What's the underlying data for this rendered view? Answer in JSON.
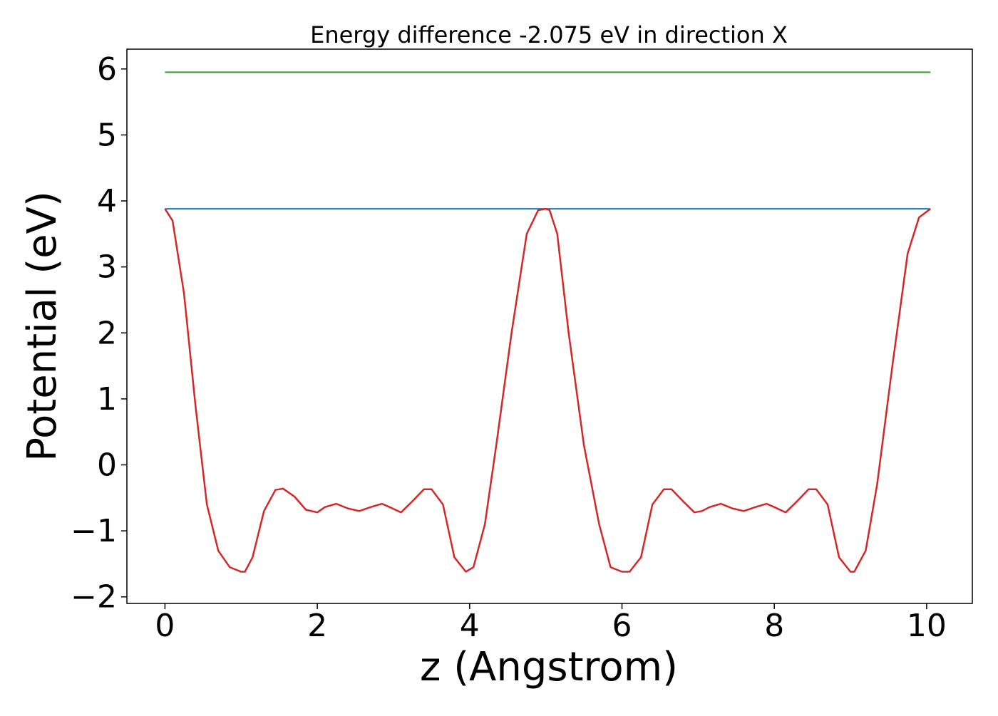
{
  "chart_data": {
    "type": "line",
    "title": "Energy difference -2.075 eV in direction X",
    "xlabel": "z (Angstrom)",
    "ylabel": "Potential (eV)",
    "xlim": [
      -0.5,
      10.6
    ],
    "ylim": [
      -2.1,
      6.3
    ],
    "x_ticks": [
      0,
      2,
      4,
      6,
      8,
      10
    ],
    "x_tick_labels": [
      "0",
      "2",
      "4",
      "6",
      "8",
      "10"
    ],
    "y_ticks": [
      -2,
      -1,
      0,
      1,
      2,
      3,
      4,
      5,
      6
    ],
    "y_tick_labels": [
      "−2",
      "−1",
      "0",
      "1",
      "2",
      "3",
      "4",
      "5",
      "6"
    ],
    "grid": false,
    "legend": false,
    "series": [
      {
        "color": "#d62728",
        "x": [
          0,
          0.1,
          0.25,
          0.4,
          0.55,
          0.7,
          0.85,
          1.0,
          1.05,
          1.15,
          1.3,
          1.45,
          1.55,
          1.7,
          1.85,
          2.0,
          2.1,
          2.25,
          2.4,
          2.55,
          2.7,
          2.85,
          2.95,
          3.1,
          3.25,
          3.4,
          3.5,
          3.65,
          3.8,
          3.95,
          4.05,
          4.2,
          4.35,
          4.55,
          4.75,
          4.9,
          5.0,
          5.05,
          5.15,
          5.3,
          5.5,
          5.7,
          5.85,
          6.0,
          6.1,
          6.25,
          6.4,
          6.55,
          6.65,
          6.8,
          6.95,
          7.05,
          7.15,
          7.3,
          7.45,
          7.6,
          7.75,
          7.9,
          8.0,
          8.15,
          8.3,
          8.45,
          8.55,
          8.7,
          8.85,
          9.0,
          9.05,
          9.2,
          9.35,
          9.55,
          9.75,
          9.9,
          10.05
        ],
        "y": [
          3.88,
          3.7,
          2.6,
          0.9,
          -0.6,
          -1.3,
          -1.55,
          -1.62,
          -1.62,
          -1.4,
          -0.7,
          -0.38,
          -0.36,
          -0.48,
          -0.68,
          -0.72,
          -0.64,
          -0.59,
          -0.66,
          -0.7,
          -0.64,
          -0.59,
          -0.64,
          -0.72,
          -0.55,
          -0.37,
          -0.37,
          -0.6,
          -1.4,
          -1.62,
          -1.55,
          -0.9,
          0.3,
          2.0,
          3.5,
          3.86,
          3.88,
          3.86,
          3.5,
          2.0,
          0.3,
          -0.9,
          -1.55,
          -1.62,
          -1.62,
          -1.4,
          -0.6,
          -0.37,
          -0.37,
          -0.55,
          -0.72,
          -0.7,
          -0.64,
          -0.59,
          -0.66,
          -0.7,
          -0.64,
          -0.59,
          -0.64,
          -0.72,
          -0.55,
          -0.37,
          -0.37,
          -0.6,
          -1.4,
          -1.62,
          -1.62,
          -1.3,
          -0.3,
          1.5,
          3.2,
          3.75,
          3.88
        ]
      },
      {
        "color": "#1f77b4",
        "x": [
          0,
          10.05
        ],
        "y": [
          3.88,
          3.88
        ]
      },
      {
        "color": "#2ca02c",
        "x": [
          0,
          10.05
        ],
        "y": [
          5.95,
          5.95
        ]
      }
    ]
  }
}
